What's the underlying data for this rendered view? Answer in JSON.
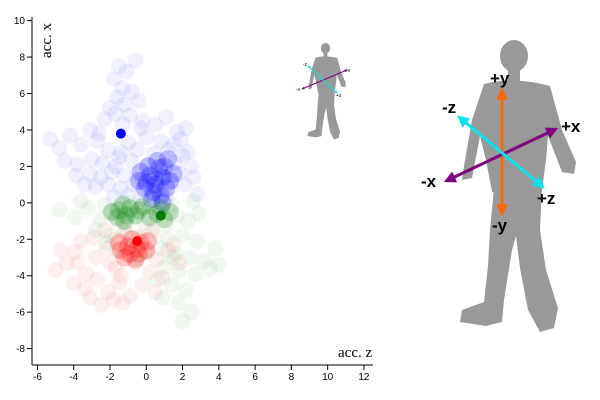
{
  "chart_data": {
    "type": "scatter",
    "xlabel": "acc. z",
    "ylabel": "acc. x",
    "xlim": [
      -6.3,
      12.5
    ],
    "ylim": [
      -8.9,
      10.2
    ],
    "x_ticks": [
      -6,
      -4,
      -2,
      0,
      2,
      4,
      6,
      8,
      10,
      12
    ],
    "y_ticks": [
      -8,
      -6,
      -4,
      -2,
      0,
      2,
      4,
      6,
      8,
      10
    ],
    "colors": {
      "blue": "#0000ff",
      "green": "#008000",
      "red": "#ff0000"
    },
    "series": [
      {
        "name": "blue",
        "centroid": [
          -1.4,
          3.8
        ],
        "cloud": [
          [
            -1.5,
            7.5
          ],
          [
            -1.1,
            7.2
          ],
          [
            -0.6,
            7.8
          ],
          [
            -1.8,
            6.8
          ],
          [
            -1.3,
            6.3
          ],
          [
            -0.8,
            6.1
          ],
          [
            -1.6,
            5.8
          ],
          [
            -2.0,
            5.2
          ],
          [
            -1.2,
            5.4
          ],
          [
            -0.4,
            5.6
          ],
          [
            -2.3,
            4.6
          ],
          [
            -1.7,
            4.9
          ],
          [
            -0.9,
            4.8
          ],
          [
            -0.2,
            4.5
          ],
          [
            0.5,
            4.3
          ],
          [
            1.1,
            4.7
          ],
          [
            2.2,
            4.1
          ],
          [
            1.7,
            3.9
          ],
          [
            -3.1,
            4.0
          ],
          [
            -4.2,
            3.7
          ],
          [
            -5.3,
            3.5
          ],
          [
            -4.8,
            3.0
          ],
          [
            -3.6,
            3.2
          ],
          [
            -2.7,
            3.4
          ],
          [
            -1.0,
            3.3
          ],
          [
            0.0,
            3.6
          ],
          [
            0.8,
            3.4
          ],
          [
            1.5,
            3.2
          ],
          [
            -2.1,
            2.9
          ],
          [
            -1.4,
            2.8
          ],
          [
            -0.5,
            2.9
          ],
          [
            0.4,
            2.7
          ],
          [
            1.2,
            2.9
          ],
          [
            2.0,
            2.6
          ],
          [
            -4.5,
            2.3
          ],
          [
            -3.8,
            2.1
          ],
          [
            -3.0,
            2.4
          ],
          [
            -2.4,
            2.2
          ],
          [
            -1.7,
            2.0
          ],
          [
            -0.8,
            2.3
          ],
          [
            0.1,
            2.1
          ],
          [
            0.9,
            2.0
          ],
          [
            1.6,
            2.2
          ],
          [
            2.5,
            2.0
          ],
          [
            -3.9,
            1.5
          ],
          [
            -3.1,
            1.6
          ],
          [
            -2.5,
            1.4
          ],
          [
            -1.9,
            1.7
          ],
          [
            -1.2,
            1.5
          ],
          [
            -0.5,
            1.6
          ],
          [
            0.3,
            1.5
          ],
          [
            1.0,
            1.4
          ],
          [
            1.8,
            1.6
          ],
          [
            -2.8,
            0.9
          ],
          [
            -2.1,
            1.0
          ],
          [
            -1.4,
            0.8
          ],
          [
            -0.7,
            1.0
          ],
          [
            0.0,
            0.9
          ],
          [
            0.7,
            1.1
          ],
          [
            1.3,
            0.8
          ],
          [
            2.1,
            1.0
          ],
          [
            -1.8,
            0.3
          ],
          [
            -1.0,
            0.4
          ],
          [
            -0.3,
            0.2
          ],
          [
            0.4,
            0.5
          ],
          [
            1.1,
            0.3
          ],
          [
            2.8,
            0.5
          ],
          [
            0.2,
            1.2
          ],
          [
            0.6,
            0.7
          ],
          [
            0.9,
            1.5
          ],
          [
            1.4,
            1.2
          ],
          [
            -0.2,
            1.3
          ],
          [
            0.3,
            0.4
          ],
          [
            0.8,
            0.2
          ],
          [
            -1.5,
            2.5
          ],
          [
            2.3,
            2.8
          ],
          [
            -2.6,
            3.8
          ],
          [
            -0.3,
            4.1
          ],
          [
            1.9,
            3.5
          ],
          [
            -3.4,
            1.0
          ],
          [
            -1.3,
            4.3
          ],
          [
            2.6,
            1.4
          ]
        ],
        "core": [
          [
            0.5,
            1.0
          ],
          [
            0.9,
            1.4
          ],
          [
            0.2,
            1.5
          ],
          [
            1.1,
            0.8
          ],
          [
            0.4,
            0.6
          ],
          [
            0.7,
            1.9
          ],
          [
            0.0,
            1.1
          ],
          [
            1.3,
            1.2
          ],
          [
            -0.3,
            1.7
          ],
          [
            0.6,
            2.3
          ],
          [
            1.0,
            2.0
          ],
          [
            0.3,
            0.2
          ],
          [
            -0.1,
            0.8
          ],
          [
            0.8,
            0.4
          ],
          [
            1.5,
            1.6
          ],
          [
            0.1,
            2.0
          ],
          [
            0.5,
            1.3
          ],
          [
            -0.4,
            1.2
          ],
          [
            1.2,
            2.4
          ],
          [
            0.9,
            0.0
          ]
        ]
      },
      {
        "name": "green",
        "centroid": [
          0.8,
          -0.7
        ],
        "cloud": [
          [
            -4.8,
            -0.4
          ],
          [
            -3.9,
            -0.8
          ],
          [
            -3.2,
            -0.3
          ],
          [
            -2.5,
            -0.9
          ],
          [
            -1.9,
            -0.5
          ],
          [
            -1.3,
            -1.0
          ],
          [
            -0.7,
            -0.6
          ],
          [
            -0.1,
            -1.1
          ],
          [
            0.5,
            -0.5
          ],
          [
            1.1,
            -1.2
          ],
          [
            1.7,
            -0.7
          ],
          [
            2.3,
            -1.0
          ],
          [
            2.9,
            -0.6
          ],
          [
            -2.8,
            -1.5
          ],
          [
            -2.0,
            -1.8
          ],
          [
            -1.2,
            -1.6
          ],
          [
            -0.4,
            -1.9
          ],
          [
            0.4,
            -1.7
          ],
          [
            1.2,
            -2.0
          ],
          [
            2.0,
            -1.8
          ],
          [
            2.8,
            -2.1
          ],
          [
            -1.6,
            -2.6
          ],
          [
            -0.8,
            -2.4
          ],
          [
            0.0,
            -2.7
          ],
          [
            0.8,
            -2.5
          ],
          [
            1.6,
            -2.8
          ],
          [
            2.4,
            -3.0
          ],
          [
            3.2,
            -3.2
          ],
          [
            4.0,
            -3.4
          ],
          [
            1.0,
            -3.5
          ],
          [
            1.8,
            -3.7
          ],
          [
            2.7,
            -3.9
          ],
          [
            1.4,
            -4.5
          ],
          [
            2.2,
            -4.8
          ],
          [
            0.9,
            -5.2
          ],
          [
            1.8,
            -5.5
          ],
          [
            2.5,
            -6.0
          ],
          [
            2.0,
            -6.5
          ],
          [
            3.5,
            -3.6
          ],
          [
            -3.6,
            0.1
          ],
          [
            -1.0,
            0.0
          ],
          [
            0.2,
            -0.2
          ],
          [
            1.4,
            -0.1
          ],
          [
            2.6,
            0.1
          ],
          [
            -2.3,
            -0.1
          ],
          [
            3.8,
            -2.5
          ],
          [
            0.6,
            -4.2
          ],
          [
            -0.5,
            -3.1
          ],
          [
            -2.2,
            -2.2
          ],
          [
            1.5,
            -3.0
          ]
        ],
        "core": [
          [
            -1.5,
            -0.4
          ],
          [
            -1.1,
            -0.7
          ],
          [
            -1.6,
            -0.8
          ],
          [
            -0.9,
            -0.3
          ],
          [
            -1.3,
            -0.1
          ],
          [
            -0.6,
            -0.7
          ],
          [
            -1.9,
            -0.5
          ],
          [
            -1.2,
            -1.0
          ],
          [
            -0.4,
            -0.4
          ],
          [
            0.6,
            -0.6
          ],
          [
            1.0,
            -0.9
          ],
          [
            0.8,
            -0.3
          ],
          [
            0.2,
            -0.8
          ],
          [
            -0.2,
            -0.2
          ],
          [
            1.3,
            -0.5
          ]
        ]
      },
      {
        "name": "red",
        "centroid": [
          -0.5,
          -2.1
        ],
        "cloud": [
          [
            -5.0,
            -3.7
          ],
          [
            -4.4,
            -3.3
          ],
          [
            -3.9,
            -2.7
          ],
          [
            -3.3,
            -3.9
          ],
          [
            -2.8,
            -3.0
          ],
          [
            -2.2,
            -2.5
          ],
          [
            -1.7,
            -3.6
          ],
          [
            -1.1,
            -2.9
          ],
          [
            -0.6,
            -3.3
          ],
          [
            0.0,
            -2.7
          ],
          [
            0.6,
            -3.1
          ],
          [
            1.2,
            -2.6
          ],
          [
            1.8,
            -3.3
          ],
          [
            -4.0,
            -4.4
          ],
          [
            -3.4,
            -4.7
          ],
          [
            -2.7,
            -4.2
          ],
          [
            -2.1,
            -4.9
          ],
          [
            -1.5,
            -4.4
          ],
          [
            -0.9,
            -5.1
          ],
          [
            -0.2,
            -4.5
          ],
          [
            0.5,
            -4.9
          ],
          [
            -3.6,
            -2.1
          ],
          [
            -2.9,
            -1.9
          ],
          [
            -2.3,
            -1.5
          ],
          [
            -1.7,
            -2.0
          ],
          [
            -1.1,
            -1.6
          ],
          [
            -0.4,
            -1.9
          ],
          [
            0.3,
            -1.5
          ],
          [
            -2.5,
            -5.6
          ],
          [
            -1.8,
            -5.3
          ],
          [
            -3.1,
            -5.2
          ],
          [
            1.5,
            -2.3
          ],
          [
            0.9,
            -4.1
          ],
          [
            -4.7,
            -2.6
          ],
          [
            -1.3,
            -5.5
          ],
          [
            -2.0,
            -3.3
          ],
          [
            -0.8,
            -2.3
          ],
          [
            0.2,
            -3.8
          ],
          [
            -3.8,
            -3.3
          ],
          [
            -1.4,
            -4.0
          ]
        ],
        "core": [
          [
            -0.9,
            -2.8
          ],
          [
            -0.5,
            -2.5
          ],
          [
            -1.2,
            -3.0
          ],
          [
            -0.3,
            -2.2
          ],
          [
            -0.8,
            -2.0
          ],
          [
            0.0,
            -2.6
          ],
          [
            -1.4,
            -2.6
          ],
          [
            -0.6,
            -3.1
          ],
          [
            0.1,
            -2.1
          ],
          [
            -1.0,
            -2.4
          ],
          [
            -0.4,
            -2.8
          ],
          [
            -1.5,
            -2.2
          ]
        ]
      }
    ]
  },
  "diagram": {
    "labels": {
      "plus_y": "+y",
      "minus_y": "-y",
      "plus_x": "+x",
      "minus_x": "-x",
      "plus_z": "+z",
      "minus_z": "-z"
    },
    "colors": {
      "x_axis": "#800080",
      "y_axis": "#ff6600",
      "z_axis": "#00e5ee",
      "silhouette": "#999999"
    }
  }
}
